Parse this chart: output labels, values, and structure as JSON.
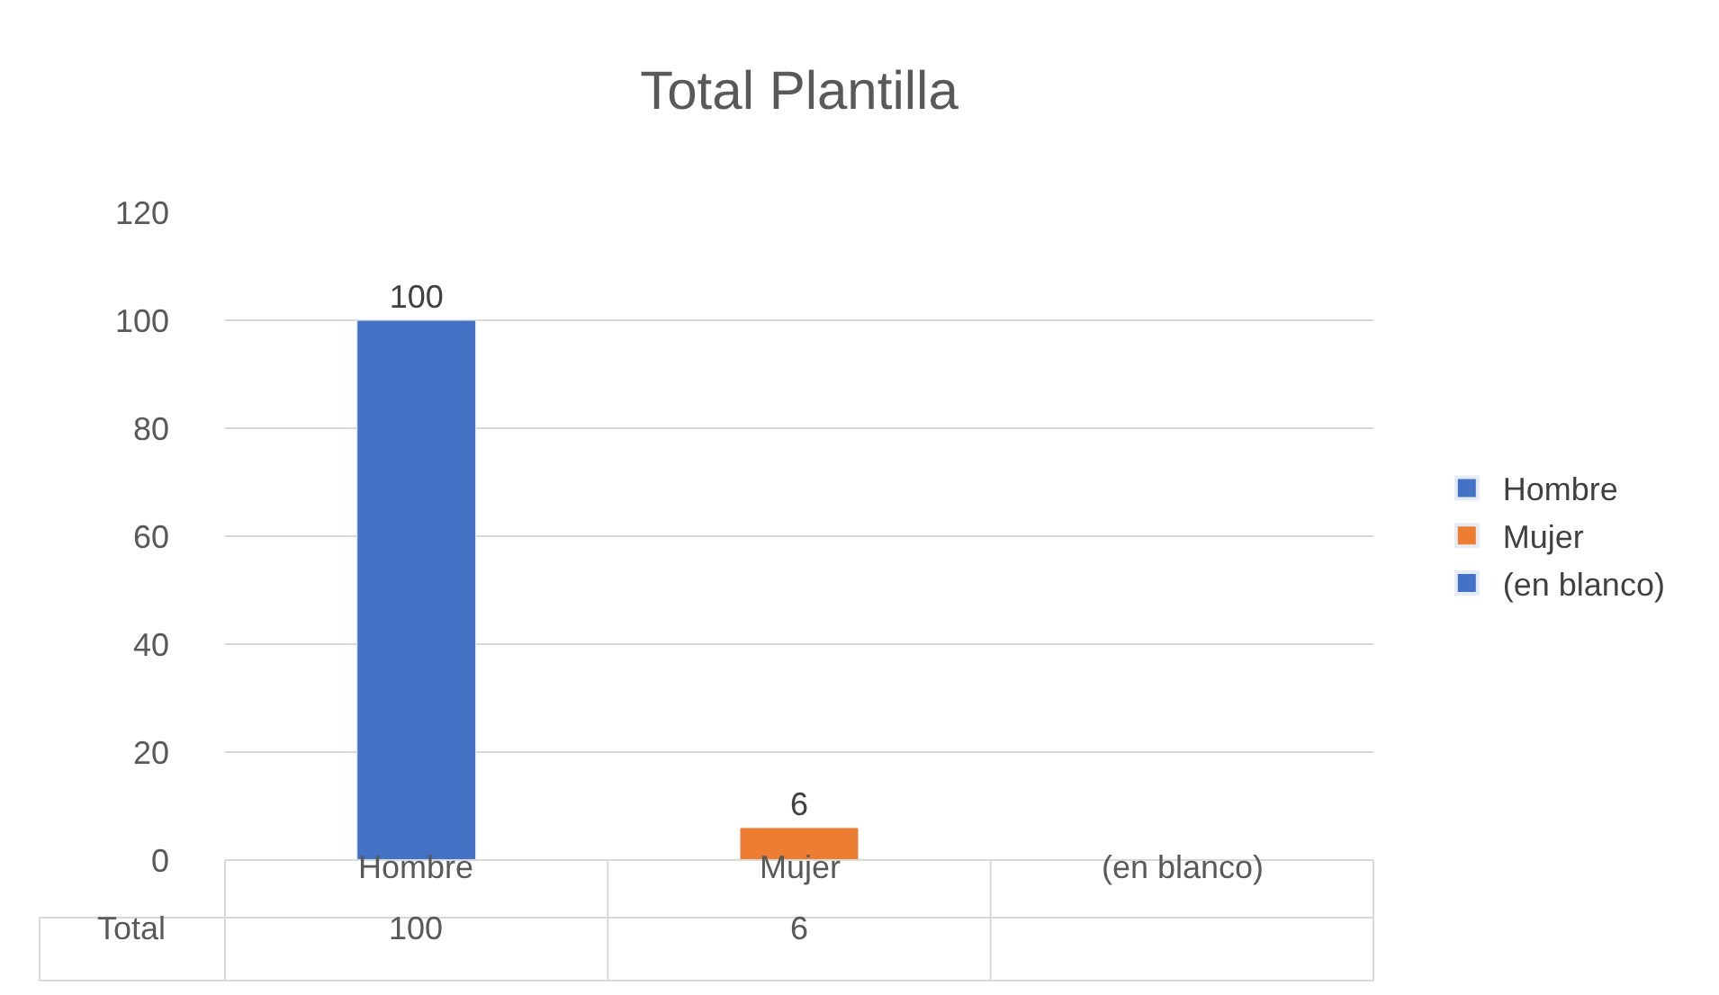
{
  "chart_data": {
    "type": "bar",
    "title": "Total Plantilla",
    "categories": [
      "Hombre",
      "Mujer",
      "(en blanco)"
    ],
    "series": [
      {
        "name": "Hombre",
        "color": "#4472c4",
        "values": [
          100,
          null,
          null
        ]
      },
      {
        "name": "Mujer",
        "color": "#ed7d31",
        "values": [
          null,
          6,
          null
        ]
      },
      {
        "name": "(en blanco)",
        "color": "#4472c4",
        "values": [
          null,
          null,
          null
        ]
      }
    ],
    "annotations": [
      "Total",
      "100",
      "6"
    ],
    "ylim": [
      0,
      120
    ],
    "yticks": [
      0,
      20,
      40,
      60,
      80,
      100,
      120
    ],
    "grid": "y",
    "legend": "right",
    "data_labels": true
  }
}
